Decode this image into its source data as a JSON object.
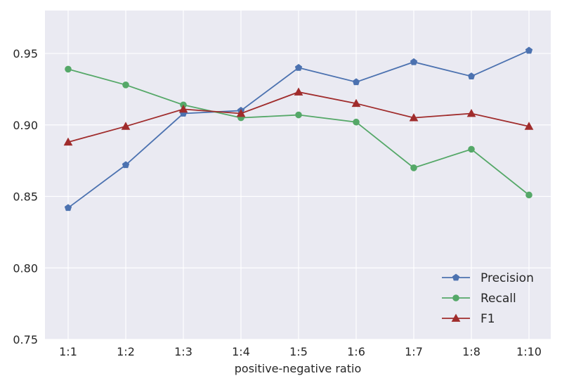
{
  "chart_data": {
    "type": "line",
    "title": "",
    "xlabel": "positive-negative ratio",
    "ylabel": "",
    "categories": [
      "1:1",
      "1:2",
      "1:3",
      "1:4",
      "1:5",
      "1:6",
      "1:7",
      "1:8",
      "1:10"
    ],
    "ylim": [
      0.75,
      0.98
    ],
    "yticks": [
      "0.75",
      "0.80",
      "0.85",
      "0.90",
      "0.95"
    ],
    "grid": true,
    "legend_position": "lower-right",
    "background": "#eaeaf2",
    "series": [
      {
        "name": "Precision",
        "color": "#4c72b0",
        "marker": "pentagon",
        "values": [
          0.842,
          0.872,
          0.908,
          0.91,
          0.94,
          0.93,
          0.944,
          0.934,
          0.952
        ]
      },
      {
        "name": "Recall",
        "color": "#55a868",
        "marker": "circle",
        "values": [
          0.939,
          0.928,
          0.914,
          0.905,
          0.907,
          0.902,
          0.87,
          0.883,
          0.851
        ]
      },
      {
        "name": "F1",
        "color": "#a02c2c",
        "marker": "triangle",
        "values": [
          0.888,
          0.899,
          0.911,
          0.908,
          0.923,
          0.915,
          0.905,
          0.908,
          0.899
        ]
      }
    ]
  }
}
